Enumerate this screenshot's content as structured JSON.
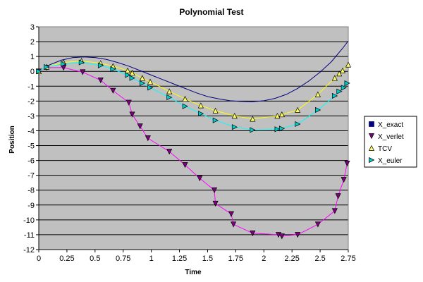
{
  "chart_data": {
    "type": "line",
    "title": "Polynomial Test",
    "xlabel": "Time",
    "ylabel": "Position",
    "xlim": [
      0,
      2.75
    ],
    "ylim": [
      -12,
      3
    ],
    "x_ticks": [
      "0",
      "0.25",
      "0.5",
      "0.75",
      "1",
      "1.25",
      "1.5",
      "1.75",
      "2",
      "2.25",
      "2.5",
      "2.75"
    ],
    "y_ticks": [
      "3",
      "2",
      "1",
      "0",
      "-1",
      "-2",
      "-3",
      "-4",
      "-5",
      "-6",
      "-7",
      "-8",
      "-9",
      "-10",
      "-11",
      "-12"
    ],
    "grid": "horizontal",
    "legend_position": "right",
    "plot_background": "#c0c0c0",
    "series": [
      {
        "name": "X_exact",
        "color": "#000080",
        "marker": "square",
        "marker_color": "#000080",
        "show_markers": false,
        "x": [
          0,
          0.1,
          0.2,
          0.3,
          0.4,
          0.5,
          0.6,
          0.7,
          0.8,
          0.9,
          1.0,
          1.1,
          1.2,
          1.3,
          1.4,
          1.5,
          1.6,
          1.7,
          1.8,
          1.9,
          2.0,
          2.1,
          2.2,
          2.3,
          2.4,
          2.5,
          2.6,
          2.7,
          2.75
        ],
        "y": [
          0,
          0.45,
          0.75,
          0.92,
          0.97,
          0.93,
          0.8,
          0.6,
          0.35,
          0.05,
          -0.25,
          -0.55,
          -0.85,
          -1.15,
          -1.45,
          -1.7,
          -1.85,
          -1.98,
          -2.03,
          -2.05,
          -1.98,
          -1.82,
          -1.55,
          -1.15,
          -0.65,
          -0.05,
          0.65,
          1.55,
          2.05
        ]
      },
      {
        "name": "X_verlet",
        "color": "#ff00ff",
        "marker": "triangle-down",
        "marker_color": "#800080",
        "show_markers": true,
        "x": [
          0,
          0.07,
          0.22,
          0.39,
          0.55,
          0.66,
          0.8,
          0.83,
          0.9,
          0.97,
          1.16,
          1.3,
          1.43,
          1.56,
          1.57,
          1.71,
          1.73,
          1.9,
          2.13,
          2.16,
          2.3,
          2.48,
          2.63,
          2.66,
          2.71,
          2.74
        ],
        "y": [
          0,
          0.25,
          0.25,
          -0.05,
          -0.6,
          -1.3,
          -2.1,
          -2.9,
          -3.7,
          -4.5,
          -5.4,
          -6.3,
          -7.2,
          -8.0,
          -8.9,
          -9.6,
          -10.3,
          -10.9,
          -11.0,
          -11.1,
          -11.0,
          -10.3,
          -9.4,
          -8.4,
          -7.3,
          -6.2
        ]
      },
      {
        "name": "TCV",
        "color": "#ffff00",
        "marker": "triangle-up",
        "marker_color": "#ffff66",
        "show_markers": true,
        "x": [
          0,
          0.07,
          0.22,
          0.38,
          0.55,
          0.66,
          0.79,
          0.83,
          0.92,
          0.99,
          1.16,
          1.3,
          1.44,
          1.57,
          1.74,
          1.9,
          2.12,
          2.16,
          2.3,
          2.48,
          2.63,
          2.67,
          2.7,
          2.75
        ],
        "y": [
          0,
          0.3,
          0.6,
          0.7,
          0.55,
          0.35,
          0.05,
          -0.1,
          -0.45,
          -0.7,
          -1.35,
          -1.85,
          -2.3,
          -2.65,
          -3.0,
          -3.2,
          -3.0,
          -2.9,
          -2.6,
          -1.55,
          -0.45,
          -0.15,
          0.05,
          0.45
        ]
      },
      {
        "name": "X_euler",
        "color": "#00ffff",
        "marker": "triangle-right",
        "marker_color": "#00cccc",
        "show_markers": true,
        "x": [
          0,
          0.07,
          0.22,
          0.38,
          0.55,
          0.66,
          0.79,
          0.83,
          0.92,
          0.99,
          1.16,
          1.3,
          1.44,
          1.57,
          1.74,
          1.9,
          2.12,
          2.16,
          2.3,
          2.48,
          2.63,
          2.67,
          2.71,
          2.74
        ],
        "y": [
          0,
          0.3,
          0.5,
          0.6,
          0.4,
          0.15,
          -0.25,
          -0.45,
          -0.8,
          -1.1,
          -1.75,
          -2.35,
          -2.85,
          -3.3,
          -3.75,
          -3.95,
          -3.9,
          -3.85,
          -3.55,
          -2.6,
          -1.65,
          -1.35,
          -1.1,
          -0.8
        ]
      }
    ]
  }
}
